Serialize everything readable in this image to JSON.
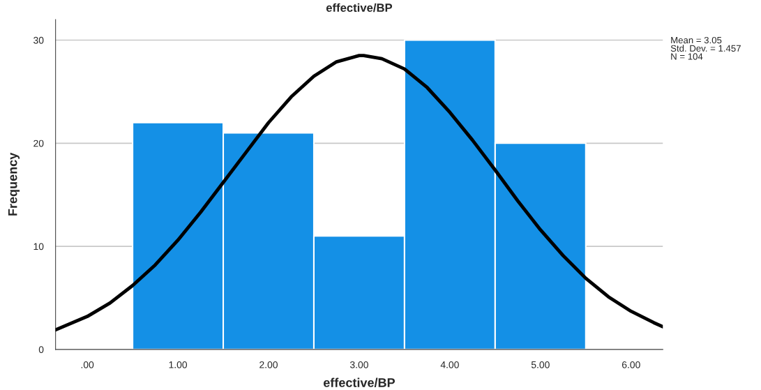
{
  "chart_data": {
    "type": "histogram",
    "title": "effective/BP",
    "xlabel": "effective/BP",
    "ylabel": "Frequency",
    "series": [
      {
        "bins": [
          0.5,
          1.5,
          2.5,
          3.5,
          4.5,
          5.5
        ],
        "values": [
          22,
          21,
          11,
          30,
          20
        ],
        "color": "#1490e6"
      },
      {
        "type": "line",
        "color": "#000000",
        "x": [
          -0.35,
          0,
          0.25,
          0.5,
          0.75,
          1,
          1.25,
          1.5,
          1.75,
          2,
          2.25,
          2.5,
          2.75,
          3,
          3.05,
          3.25,
          3.5,
          3.75,
          4,
          4.25,
          4.5,
          4.75,
          5,
          5.25,
          5.5,
          5.75,
          6,
          6.25,
          6.35
        ],
        "values": [
          1.9,
          3.2,
          4.5,
          6.2,
          8.2,
          10.6,
          13.3,
          16.2,
          19.1,
          22.0,
          24.5,
          26.5,
          27.9,
          28.5,
          28.5,
          28.2,
          27.2,
          25.4,
          23.0,
          20.3,
          17.4,
          14.4,
          11.6,
          9.1,
          6.9,
          5.1,
          3.7,
          2.6,
          2.2
        ]
      }
    ],
    "xlim": [
      -0.35,
      6.35
    ],
    "xticks": [
      {
        "value": 0,
        "label": ".00"
      },
      {
        "value": 1,
        "label": "1.00"
      },
      {
        "value": 2,
        "label": "2.00"
      },
      {
        "value": 3,
        "label": "3.00"
      },
      {
        "value": 4,
        "label": "4.00"
      },
      {
        "value": 5,
        "label": "5.00"
      },
      {
        "value": 6,
        "label": "6.00"
      }
    ],
    "ylim": [
      0,
      32
    ],
    "yticks": [
      0,
      10,
      20,
      30
    ],
    "grid": "y",
    "marker": "none",
    "line_style": "solid",
    "annotations": [
      "Mean = 3.05",
      "Std. Dev. = 1.457",
      "N = 104"
    ]
  }
}
